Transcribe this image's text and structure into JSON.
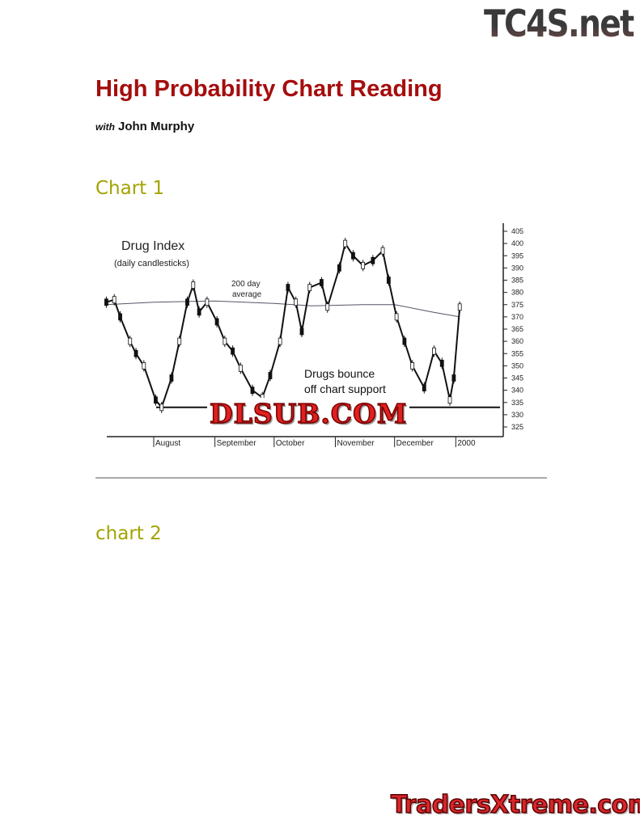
{
  "logos": {
    "top": "TC4S.net",
    "watermark": "DLSUB.COM",
    "bottom": "TradersXtreme.com"
  },
  "document": {
    "title": "High Probability Chart Reading",
    "byline_with": "with",
    "byline_author": "John Murphy",
    "section1": "Chart 1",
    "section2": "chart 2"
  },
  "colors": {
    "title": "#a50d0d",
    "section": "#a3a300",
    "support_line": "#1a7a1a"
  },
  "chart_data": {
    "type": "line",
    "title": "Drug Index",
    "subtitle": "(daily candlesticks)",
    "annotations": {
      "ma_label_1": "200 day",
      "ma_label_2": "average",
      "note_1": "Drugs bounce",
      "note_2": "off chart support"
    },
    "x_tick_labels": [
      "August",
      "September",
      "October",
      "November",
      "December",
      "2000"
    ],
    "ylim": [
      325,
      405
    ],
    "y_ticks": [
      325,
      330,
      335,
      340,
      345,
      350,
      355,
      360,
      365,
      370,
      375,
      380,
      385,
      390,
      395,
      400,
      405
    ],
    "support_level": 333,
    "series": [
      {
        "name": "Drug Index",
        "points": [
          [
            "1999-07-08",
            376
          ],
          [
            "1999-07-12",
            377
          ],
          [
            "1999-07-15",
            370
          ],
          [
            "1999-07-20",
            360
          ],
          [
            "1999-07-23",
            355
          ],
          [
            "1999-07-27",
            350
          ],
          [
            "1999-08-02",
            336
          ],
          [
            "1999-08-05",
            333
          ],
          [
            "1999-08-10",
            345
          ],
          [
            "1999-08-14",
            360
          ],
          [
            "1999-08-18",
            376
          ],
          [
            "1999-08-21",
            383
          ],
          [
            "1999-08-24",
            372
          ],
          [
            "1999-08-28",
            376
          ],
          [
            "1999-09-02",
            368
          ],
          [
            "1999-09-06",
            360
          ],
          [
            "1999-09-10",
            356
          ],
          [
            "1999-09-14",
            349
          ],
          [
            "1999-09-20",
            340
          ],
          [
            "1999-09-25",
            337
          ],
          [
            "1999-09-29",
            346
          ],
          [
            "1999-10-04",
            360
          ],
          [
            "1999-10-08",
            382
          ],
          [
            "1999-10-12",
            376
          ],
          [
            "1999-10-15",
            364
          ],
          [
            "1999-10-19",
            382
          ],
          [
            "1999-10-25",
            384
          ],
          [
            "1999-10-28",
            374
          ],
          [
            "1999-11-03",
            390
          ],
          [
            "1999-11-06",
            400
          ],
          [
            "1999-11-10",
            395
          ],
          [
            "1999-11-15",
            391
          ],
          [
            "1999-11-20",
            393
          ],
          [
            "1999-11-25",
            397
          ],
          [
            "1999-11-28",
            385
          ],
          [
            "1999-12-02",
            370
          ],
          [
            "1999-12-06",
            360
          ],
          [
            "1999-12-10",
            350
          ],
          [
            "1999-12-16",
            341
          ],
          [
            "1999-12-21",
            356
          ],
          [
            "1999-12-25",
            351
          ],
          [
            "1999-12-29",
            336
          ],
          [
            "1999-12-31",
            345
          ],
          [
            "2000-01-03",
            374
          ]
        ]
      },
      {
        "name": "200 day average",
        "points": [
          [
            "1999-07-08",
            375
          ],
          [
            "1999-08-01",
            376
          ],
          [
            "1999-09-01",
            376.5
          ],
          [
            "1999-10-01",
            375.5
          ],
          [
            "1999-10-20",
            374.5
          ],
          [
            "1999-11-15",
            375
          ],
          [
            "1999-12-01",
            375
          ],
          [
            "1999-12-20",
            372
          ],
          [
            "2000-01-03",
            370
          ]
        ]
      }
    ]
  }
}
